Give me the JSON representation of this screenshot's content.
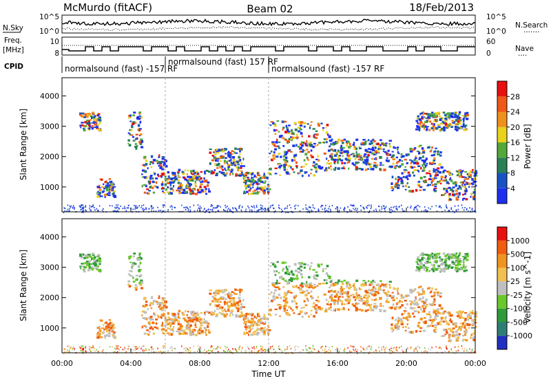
{
  "header": {
    "title_left": "McMurdo (fitACF)",
    "title_center": "Beam 02",
    "title_right": "18/Feb/2013"
  },
  "left_labels": {
    "nsky": "N.Sky",
    "freq_line1": "Freq.",
    "freq_line2": "[MHz]",
    "cpid": "CPID"
  },
  "right_labels": {
    "nsearch": "N.Search",
    "nsearch_dots": "·······",
    "nave": "Nave",
    "nave_dots": "····"
  },
  "noise_axis": {
    "left_top": "10^5",
    "left_bottom": "10^0",
    "right_top": "10^5",
    "right_bottom": "10^0"
  },
  "freq_axis": {
    "left_top": "10",
    "left_bottom": "8",
    "right_top": "60",
    "right_bottom": "0"
  },
  "cpid_segments": [
    {
      "label": "normalsound (fast) -157 RF",
      "start_hour": 0.0
    },
    {
      "label": "normalsound (fast) 157 RF",
      "start_hour": 6.0
    },
    {
      "label": "normalsound (fast) -157 RF",
      "start_hour": 12.0
    }
  ],
  "power_colorbar": {
    "label": "Power [dB]",
    "ticks": [
      "4",
      "8",
      "12",
      "16",
      "20",
      "24",
      "28"
    ],
    "colors": [
      "#1f2ff0",
      "#1a52c4",
      "#2a7f56",
      "#52a93a",
      "#e8d21c",
      "#f0901c",
      "#f05818",
      "#e81010"
    ]
  },
  "velocity_colorbar": {
    "label": "Velocity [m s^-1]",
    "ticks": [
      "1000",
      "500",
      "100",
      "25",
      "-25",
      "-100",
      "-500",
      "-1000"
    ],
    "colors": [
      "#2030c0",
      "#2e7e76",
      "#2e9a3a",
      "#6ac82c",
      "#bfbfbf",
      "#f0c050",
      "#f09420",
      "#f05c10",
      "#e81010"
    ]
  },
  "chart_data": {
    "type": "heatmap",
    "x_axis": {
      "label": "Time UT",
      "ticks": [
        "00:00",
        "04:00",
        "08:00",
        "12:00",
        "16:00",
        "20:00",
        "00:00"
      ],
      "range_hours": [
        0,
        24
      ]
    },
    "y_axis": {
      "label": "Slant Range [km]",
      "ticks": [
        "1000",
        "2000",
        "3000",
        "4000"
      ],
      "range_km": [
        180,
        4600
      ]
    },
    "panels": [
      "Power [dB]",
      "Velocity [m s^-1]"
    ],
    "scatter_regions_km_hours": [
      {
        "t0": 1.0,
        "t1": 2.2,
        "r0": 2900,
        "r1": 3500
      },
      {
        "t0": 2.0,
        "t1": 3.0,
        "r0": 700,
        "r1": 1300
      },
      {
        "t0": 3.8,
        "t1": 4.6,
        "r0": 2300,
        "r1": 3500
      },
      {
        "t0": 4.6,
        "t1": 6.0,
        "r0": 800,
        "r1": 2100
      },
      {
        "t0": 6.0,
        "t1": 8.5,
        "r0": 800,
        "r1": 1600
      },
      {
        "t0": 8.5,
        "t1": 10.5,
        "r0": 1400,
        "r1": 2300
      },
      {
        "t0": 10.5,
        "t1": 12.0,
        "r0": 800,
        "r1": 1500
      },
      {
        "t0": 12.0,
        "t1": 15.5,
        "r0": 1400,
        "r1": 3200
      },
      {
        "t0": 15.5,
        "t1": 19.0,
        "r0": 1600,
        "r1": 2600
      },
      {
        "t0": 19.0,
        "t1": 22.0,
        "r0": 900,
        "r1": 2400
      },
      {
        "t0": 22.0,
        "t1": 24.0,
        "r0": 600,
        "r1": 1600
      },
      {
        "t0": 20.5,
        "t1": 23.5,
        "r0": 2900,
        "r1": 3500
      }
    ]
  }
}
